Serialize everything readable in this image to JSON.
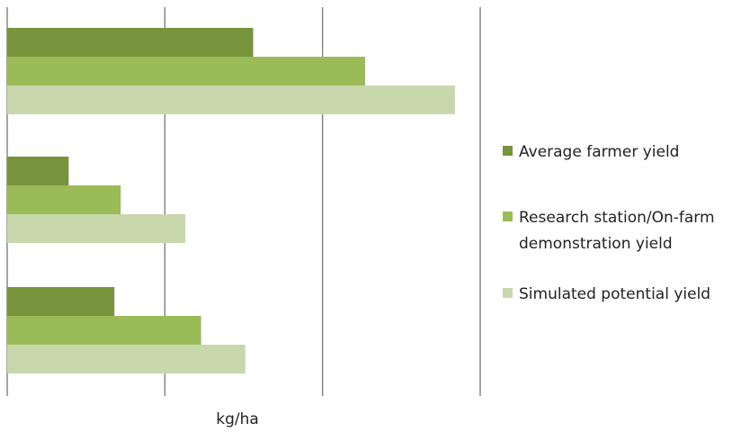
{
  "chart_data": {
    "type": "bar",
    "orientation": "horizontal",
    "title": "",
    "xlabel": "kg/ha",
    "ylabel": "",
    "categories": [
      "",
      "",
      ""
    ],
    "series": [
      {
        "name": "Average farmer yield",
        "color": "#77933c",
        "values": [
          1.56,
          0.39,
          0.68
        ]
      },
      {
        "name": "Research station/On-farm demonstration yield",
        "color": "#9bbb59",
        "values": [
          2.27,
          0.72,
          1.23
        ]
      },
      {
        "name": "Simulated potential yield",
        "color": "#c9d7ad",
        "values": [
          2.84,
          1.13,
          1.51
        ]
      }
    ],
    "xlim": [
      0,
      3
    ],
    "grid": true,
    "gridlines": [
      0,
      1,
      2,
      3
    ],
    "legend": {
      "position": "right",
      "entries": [
        {
          "lines": [
            "Average farmer yield"
          ],
          "color": "#77933c"
        },
        {
          "lines": [
            "Research station/On-farm",
            "demonstration yield"
          ],
          "color": "#9bbb59"
        },
        {
          "lines": [
            "Simulated potential yield"
          ],
          "color": "#c9d7ad"
        }
      ]
    }
  }
}
